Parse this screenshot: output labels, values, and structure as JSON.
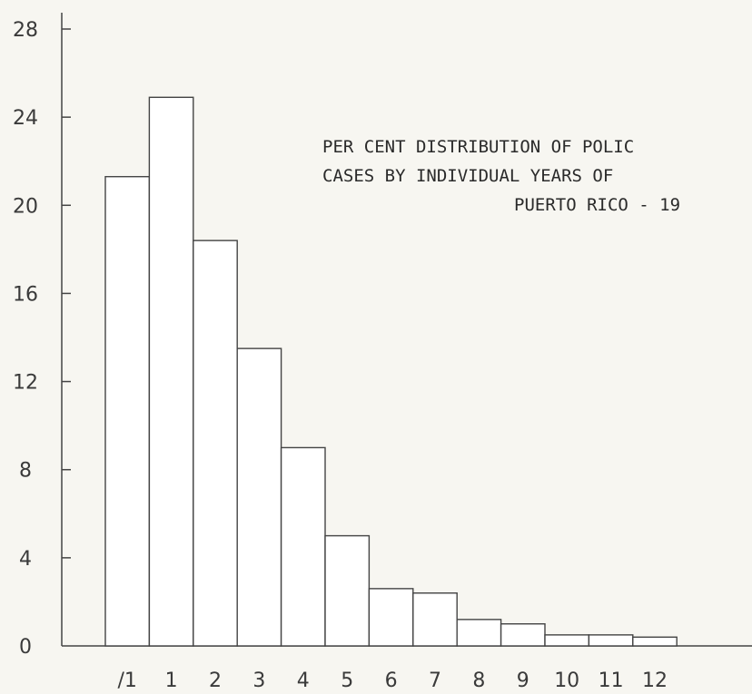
{
  "chart_data": {
    "type": "bar",
    "title_lines": [
      "PER CENT DISTRIBUTION OF POLIC",
      "CASES BY INDIVIDUAL YEARS OF",
      "PUERTO RICO - 19"
    ],
    "categories": [
      "/1",
      "1",
      "2",
      "3",
      "4",
      "5",
      "6",
      "7",
      "8",
      "9",
      "10",
      "11",
      "12"
    ],
    "values": [
      21.3,
      24.9,
      18.4,
      13.5,
      9.0,
      5.0,
      2.6,
      2.4,
      1.2,
      1.0,
      0.5,
      0.5,
      0.4
    ],
    "yticks": [
      0,
      4,
      8,
      12,
      16,
      20,
      24,
      28
    ],
    "ylim": [
      0,
      28
    ],
    "grid": false,
    "xlabel": "",
    "ylabel": ""
  }
}
